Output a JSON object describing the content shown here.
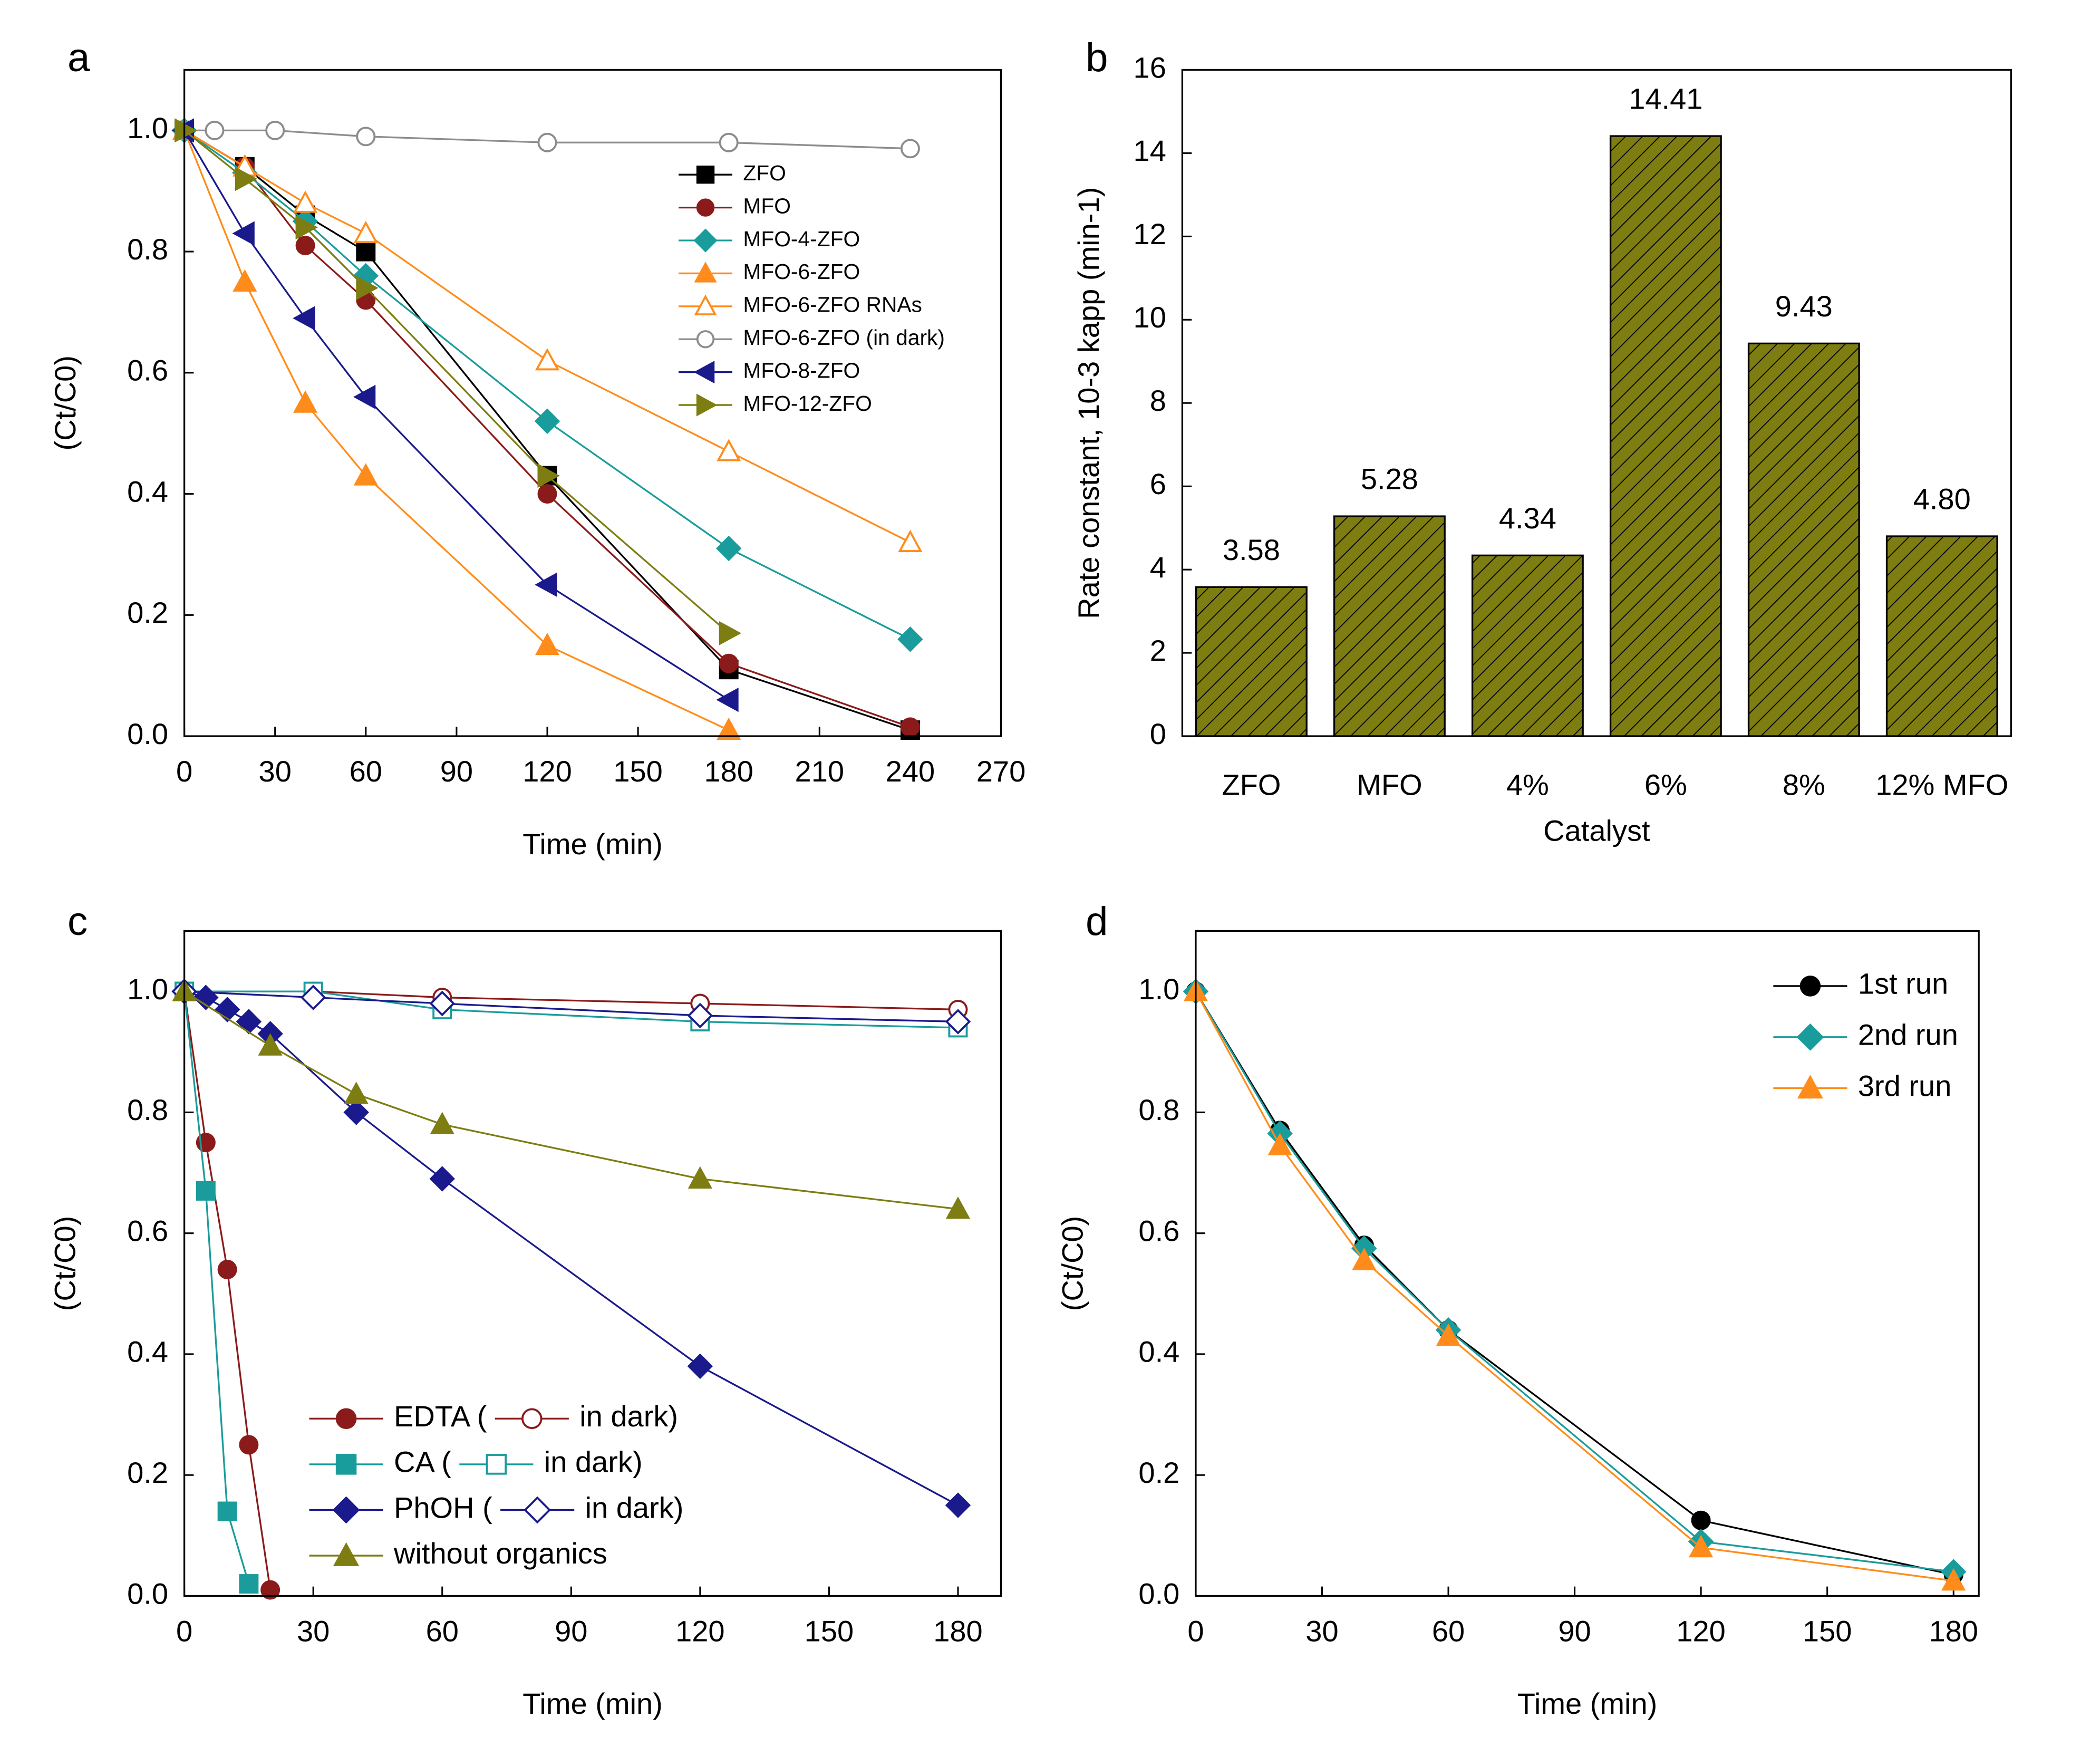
{
  "chart_data": [
    {
      "type": "line",
      "panel": "a",
      "x_label": "Time (min)",
      "y_label": "(Ct/C0)",
      "xlim": [
        0,
        270
      ],
      "xticks": [
        0,
        30,
        60,
        90,
        120,
        150,
        180,
        210,
        240,
        270
      ],
      "ylim": [
        0,
        1.1
      ],
      "yticks": [
        {
          "value": 0,
          "label": "0.0"
        },
        0.2,
        0.4,
        0.6,
        0.8,
        {
          "value": 1,
          "label": "1.0"
        }
      ],
      "legend_loc": "upper right",
      "series": [
        {
          "name": "ZFO",
          "color": "#000000",
          "marker": "square",
          "filled": true,
          "x": [
            0,
            20,
            40,
            60,
            120,
            180,
            240
          ],
          "values": [
            1.0,
            0.94,
            0.86,
            0.8,
            0.43,
            0.11,
            0.01
          ]
        },
        {
          "name": "MFO",
          "color": "#8b1a1a",
          "marker": "circle",
          "filled": true,
          "x": [
            0,
            20,
            40,
            60,
            120,
            180,
            240
          ],
          "values": [
            1.0,
            0.94,
            0.81,
            0.72,
            0.4,
            0.12,
            0.015
          ]
        },
        {
          "name": "MFO-4-ZFO",
          "color": "#1a9c9c",
          "marker": "diamond",
          "filled": true,
          "x": [
            0,
            20,
            40,
            60,
            120,
            180,
            240
          ],
          "values": [
            1.0,
            0.93,
            0.85,
            0.76,
            0.52,
            0.31,
            0.16
          ]
        },
        {
          "name": "MFO-6-ZFO",
          "color": "#ff8c1a",
          "marker": "triangle-up",
          "filled": true,
          "x": [
            0,
            20,
            40,
            60,
            120,
            180
          ],
          "values": [
            1.0,
            0.75,
            0.55,
            0.43,
            0.15,
            0.01
          ]
        },
        {
          "name": "MFO-6-ZFO RNAs",
          "color": "#ff8c1a",
          "marker": "triangle-up",
          "filled": false,
          "x": [
            0,
            20,
            40,
            60,
            120,
            180,
            240
          ],
          "values": [
            1.0,
            0.94,
            0.88,
            0.83,
            0.62,
            0.47,
            0.32
          ]
        },
        {
          "name": "MFO-6-ZFO (in dark)",
          "color": "#8c8c8c",
          "marker": "circle",
          "filled": false,
          "x": [
            0,
            10,
            30,
            60,
            120,
            180,
            240
          ],
          "values": [
            1.0,
            1.0,
            1.0,
            0.99,
            0.98,
            0.98,
            0.97
          ]
        },
        {
          "name": "MFO-8-ZFO",
          "color": "#1a1a8c",
          "marker": "triangle-left",
          "filled": true,
          "x": [
            0,
            20,
            40,
            60,
            120,
            180
          ],
          "values": [
            1.0,
            0.83,
            0.69,
            0.56,
            0.25,
            0.06
          ]
        },
        {
          "name": "MFO-12-ZFO",
          "color": "#7d7d12",
          "marker": "triangle-right",
          "filled": true,
          "x": [
            0,
            20,
            40,
            60,
            120,
            180
          ],
          "values": [
            1.0,
            0.92,
            0.84,
            0.74,
            0.43,
            0.17
          ]
        }
      ]
    },
    {
      "type": "bar",
      "panel": "b",
      "x_label": "Catalyst",
      "y_label": "Rate constant, 10-3 kapp (min-1)",
      "categories": [
        "ZFO",
        "MFO",
        "4%",
        "6%",
        "8%",
        "12% MFO"
      ],
      "values": [
        3.58,
        5.28,
        4.34,
        14.41,
        9.43,
        4.8
      ],
      "value_labels": [
        "3.58",
        "5.28",
        "4.34",
        "14.41",
        "9.43",
        "4.80"
      ],
      "color": "#7d7d12",
      "hatch": true,
      "ylim": [
        0,
        16
      ],
      "yticks": [
        0,
        2,
        4,
        6,
        8,
        10,
        12,
        14,
        16
      ]
    },
    {
      "type": "line",
      "panel": "c",
      "x_label": "Time (min)",
      "y_label": "(Ct/C0)",
      "xlim": [
        0,
        190
      ],
      "xticks": [
        0,
        30,
        60,
        90,
        120,
        150,
        180
      ],
      "ylim": [
        0,
        1.1
      ],
      "yticks": [
        {
          "value": 0,
          "label": "0.0"
        },
        0.2,
        0.4,
        0.6,
        0.8,
        {
          "value": 1,
          "label": "1.0"
        }
      ],
      "legend_loc": "lower left",
      "series": [
        {
          "name": "EDTA (",
          "color": "#8b1a1a",
          "marker": "circle",
          "filled": true,
          "x": [
            0,
            5,
            10,
            15,
            20
          ],
          "values": [
            1.0,
            0.75,
            0.54,
            0.25,
            0.01
          ]
        },
        {
          "name": "in dark)",
          "color": "#8b1a1a",
          "marker": "circle",
          "filled": false,
          "x": [
            0,
            30,
            60,
            120,
            180
          ],
          "values": [
            1.0,
            1.0,
            0.99,
            0.98,
            0.97
          ]
        },
        {
          "name": "CA (",
          "color": "#1a9c9c",
          "marker": "square",
          "filled": true,
          "x": [
            0,
            5,
            10,
            15
          ],
          "values": [
            1.0,
            0.67,
            0.14,
            0.02
          ]
        },
        {
          "name": "in dark)",
          "color": "#1a9c9c",
          "marker": "square",
          "filled": false,
          "x": [
            0,
            30,
            60,
            120,
            180
          ],
          "values": [
            1.0,
            1.0,
            0.97,
            0.95,
            0.94
          ]
        },
        {
          "name": "PhOH (",
          "color": "#1a1a8c",
          "marker": "diamond",
          "filled": true,
          "x": [
            0,
            5,
            10,
            15,
            20,
            40,
            60,
            120,
            180
          ],
          "values": [
            1.0,
            0.99,
            0.97,
            0.95,
            0.93,
            0.8,
            0.69,
            0.38,
            0.15
          ]
        },
        {
          "name": "in dark)",
          "color": "#1a1a8c",
          "marker": "diamond",
          "filled": false,
          "x": [
            0,
            30,
            60,
            120,
            180
          ],
          "values": [
            1.0,
            0.99,
            0.98,
            0.96,
            0.95
          ]
        },
        {
          "name": "without organics",
          "color": "#7d7d12",
          "marker": "triangle-up",
          "filled": true,
          "x": [
            0,
            20,
            40,
            60,
            120,
            180
          ],
          "values": [
            1.0,
            0.91,
            0.83,
            0.78,
            0.69,
            0.64
          ]
        }
      ]
    },
    {
      "type": "line",
      "panel": "d",
      "x_label": "Time (min)",
      "y_label": "(Ct/C0)",
      "xlim": [
        0,
        186
      ],
      "xticks": [
        0,
        30,
        60,
        90,
        120,
        150,
        180
      ],
      "ylim": [
        0,
        1.1
      ],
      "yticks": [
        {
          "value": 0,
          "label": "0.0"
        },
        0.2,
        0.4,
        0.6,
        0.8,
        {
          "value": 1,
          "label": "1.0"
        }
      ],
      "legend_loc": "upper right",
      "series": [
        {
          "name": "1st run",
          "color": "#000000",
          "marker": "circle",
          "filled": true,
          "x": [
            0,
            20,
            40,
            60,
            120,
            180
          ],
          "values": [
            1.0,
            0.77,
            0.58,
            0.44,
            0.125,
            0.035
          ]
        },
        {
          "name": "2nd run",
          "color": "#1a9c9c",
          "marker": "diamond",
          "filled": true,
          "x": [
            0,
            20,
            40,
            60,
            120,
            180
          ],
          "values": [
            1.0,
            0.765,
            0.575,
            0.44,
            0.09,
            0.04
          ]
        },
        {
          "name": "3rd run",
          "color": "#ff8c1a",
          "marker": "triangle-up",
          "filled": true,
          "x": [
            0,
            20,
            40,
            60,
            120,
            180
          ],
          "values": [
            1.0,
            0.745,
            0.555,
            0.43,
            0.08,
            0.025
          ]
        }
      ]
    }
  ]
}
